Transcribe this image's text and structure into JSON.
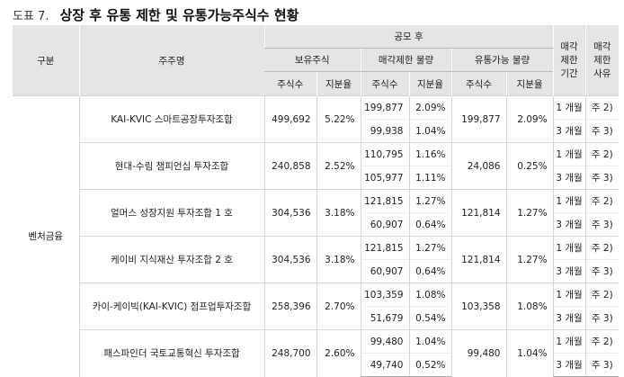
{
  "title": {
    "label": "도표 7.",
    "text": "상장 후 유통 제한 및 유통가능주식수 현황"
  },
  "headers": {
    "category": "구분",
    "holder": "주주명",
    "ipo_after": "공모 후",
    "holding": "보유주식",
    "sale_limit": "매각제한 물량",
    "tradable": "유통가능 물량",
    "shares": "주식수",
    "ratio": "지분율",
    "period": "매각\n제한\n기간",
    "reason": "매각\n제한\n사유"
  },
  "category": "벤처금융",
  "rows": [
    {
      "name": "KAI-KVIC 스마트공장투자조합",
      "hold_shares": "499,692",
      "hold_ratio": "5.22%",
      "trad_shares": "199,877",
      "trad_ratio": "2.09%",
      "limits": [
        {
          "shares": "199,877",
          "ratio": "2.09%",
          "period": "1 개월",
          "reason": "주 2)"
        },
        {
          "shares": "99,938",
          "ratio": "1.04%",
          "period": "3 개월",
          "reason": "주 3)"
        }
      ]
    },
    {
      "name": "현대-수림 챔피언십 투자조합",
      "hold_shares": "240,858",
      "hold_ratio": "2.52%",
      "trad_shares": "24,086",
      "trad_ratio": "0.25%",
      "limits": [
        {
          "shares": "110,795",
          "ratio": "1.16%",
          "period": "1 개월",
          "reason": "주 2)"
        },
        {
          "shares": "105,977",
          "ratio": "1.11%",
          "period": "3 개월",
          "reason": "주 3)"
        }
      ]
    },
    {
      "name": "얼머스 성장지원 투자조합 1 호",
      "hold_shares": "304,536",
      "hold_ratio": "3.18%",
      "trad_shares": "121,814",
      "trad_ratio": "1.27%",
      "limits": [
        {
          "shares": "121,815",
          "ratio": "1.27%",
          "period": "1 개월",
          "reason": "주 2)"
        },
        {
          "shares": "60,907",
          "ratio": "0.64%",
          "period": "3 개월",
          "reason": "주 3)"
        }
      ]
    },
    {
      "name": "케이비 지식재산 투자조합 2 호",
      "hold_shares": "304,536",
      "hold_ratio": "3.18%",
      "trad_shares": "121,814",
      "trad_ratio": "1.27%",
      "limits": [
        {
          "shares": "121,815",
          "ratio": "1.27%",
          "period": "1 개월",
          "reason": "주 2)"
        },
        {
          "shares": "60,907",
          "ratio": "0.64%",
          "period": "3 개월",
          "reason": "주 3)"
        }
      ]
    },
    {
      "name": "카이-케이빅(KAI-KVIC) 점프업투자조합",
      "hold_shares": "258,396",
      "hold_ratio": "2.70%",
      "trad_shares": "103,358",
      "trad_ratio": "1.08%",
      "limits": [
        {
          "shares": "103,359",
          "ratio": "1.08%",
          "period": "1 개월",
          "reason": "주 2)"
        },
        {
          "shares": "51,679",
          "ratio": "0.54%",
          "period": "3 개월",
          "reason": "주 3)"
        }
      ]
    },
    {
      "name": "패스파인더 국토교통혁신 투자조합",
      "hold_shares": "248,700",
      "hold_ratio": "2.60%",
      "trad_shares": "99,480",
      "trad_ratio": "1.04%",
      "limits": [
        {
          "shares": "99,480",
          "ratio": "1.04%",
          "period": "1 개월",
          "reason": "주 2)"
        },
        {
          "shares": "49,740",
          "ratio": "0.52%",
          "period": "3 개월",
          "reason": "주 3)"
        }
      ]
    }
  ]
}
